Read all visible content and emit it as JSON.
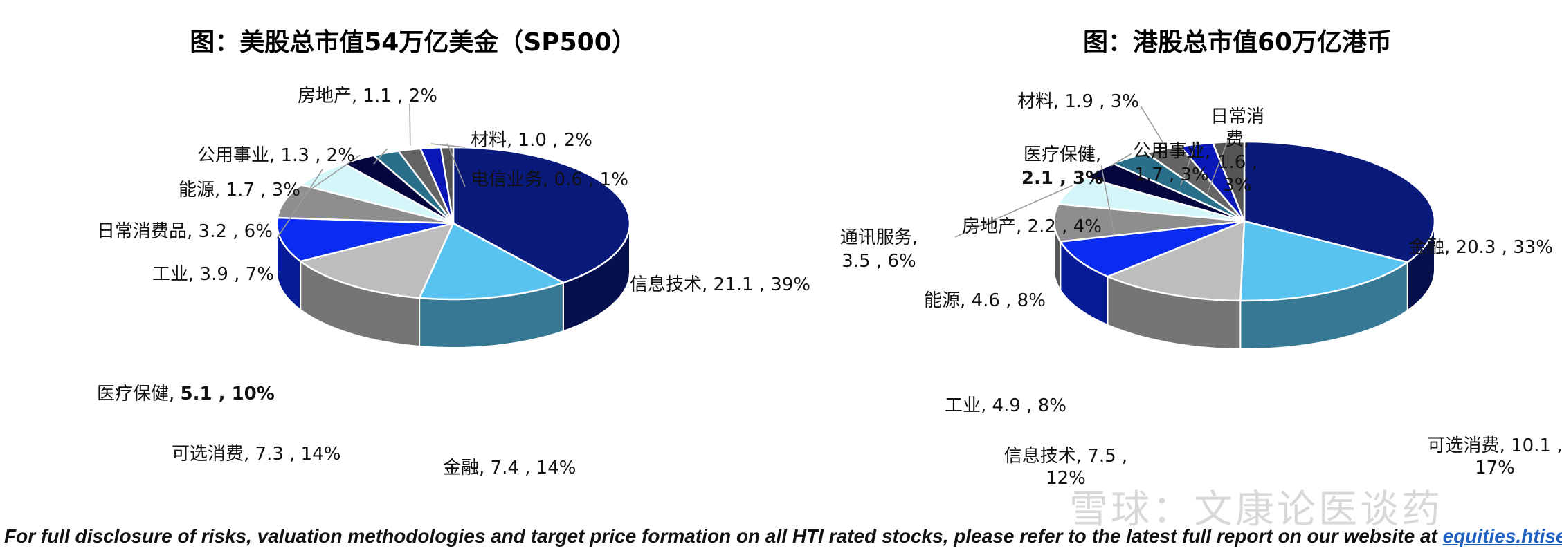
{
  "chart_data": [
    {
      "type": "pie",
      "title": "图：美股总市值54万亿美金（SP500）",
      "slices": [
        {
          "name": "信息技术",
          "value": 21.1,
          "pct": "39%",
          "label": "信息技术, 21.1 , 39%",
          "color": "#0a1a7a"
        },
        {
          "name": "金融",
          "value": 7.4,
          "pct": "14%",
          "label": "金融, 7.4 , 14%",
          "color": "#58c3f0"
        },
        {
          "name": "可选消费",
          "value": 7.3,
          "pct": "14%",
          "label": "可选消费, 7.3 , 14%",
          "color": "#bdbdbd"
        },
        {
          "name": "医疗保健",
          "value": 5.1,
          "pct": "10%",
          "label_prefix": "医疗保健, ",
          "label_bold": "5.1 , 10%",
          "color": "#0a2cf0"
        },
        {
          "name": "工业",
          "value": 3.9,
          "pct": "7%",
          "label": "工业, 3.9 , 7%",
          "color": "#8e8e8e"
        },
        {
          "name": "日常消费品",
          "value": 3.2,
          "pct": "6%",
          "label": "日常消费品, 3.2 , 6%",
          "color": "#d5f6f8"
        },
        {
          "name": "能源",
          "value": 1.7,
          "pct": "3%",
          "label": "能源, 1.7 , 3%",
          "color": "#06063f"
        },
        {
          "name": "公用事业",
          "value": 1.3,
          "pct": "2%",
          "label": "公用事业, 1.3 , 2%",
          "color": "#2a6f8a"
        },
        {
          "name": "房地产",
          "value": 1.1,
          "pct": "2%",
          "label": "房地产, 1.1 , 2%",
          "color": "#646464"
        },
        {
          "name": "材料",
          "value": 1.0,
          "pct": "2%",
          "label": "材料, 1.0 , 2%",
          "color": "#0a18b8"
        },
        {
          "name": "电信业务",
          "value": 0.6,
          "pct": "1%",
          "label": "电信业务, 0.6 , 1%",
          "color": "#555555"
        }
      ]
    },
    {
      "type": "pie",
      "title": "图：港股总市值60万亿港币",
      "slices": [
        {
          "name": "金融",
          "value": 20.3,
          "pct": "33%",
          "label": "金融, 20.3 , 33%",
          "color": "#0a1a7a"
        },
        {
          "name": "可选消费",
          "value": 10.1,
          "pct": "17%",
          "label_lines": [
            "可选消费, 10.1 ,",
            "17%"
          ],
          "color": "#58c3f0"
        },
        {
          "name": "信息技术",
          "value": 7.5,
          "pct": "12%",
          "label_lines": [
            "信息技术, 7.5 ,",
            "12%"
          ],
          "color": "#bdbdbd"
        },
        {
          "name": "工业",
          "value": 4.9,
          "pct": "8%",
          "label": "工业, 4.9 , 8%",
          "color": "#0a2cf0"
        },
        {
          "name": "能源",
          "value": 4.6,
          "pct": "8%",
          "label": "能源, 4.6 , 8%",
          "color": "#8e8e8e"
        },
        {
          "name": "通讯服务",
          "value": 3.5,
          "pct": "6%",
          "label_lines": [
            "通讯服务,",
            "3.5 , 6%"
          ],
          "color": "#d5f6f8"
        },
        {
          "name": "房地产",
          "value": 2.2,
          "pct": "4%",
          "label": "房地产, 2.2 , 4%",
          "color": "#06063f"
        },
        {
          "name": "医疗保健",
          "value": 2.1,
          "pct": "3%",
          "label_lines": [
            "医疗保健,",
            "2.1 , 3%"
          ],
          "bold_line": 1,
          "color": "#2a6f8a"
        },
        {
          "name": "材料",
          "value": 1.9,
          "pct": "3%",
          "label": "材料, 1.9 , 3%",
          "color": "#646464"
        },
        {
          "name": "公用事业",
          "value": 1.7,
          "pct": "3%",
          "label_lines": [
            "公用事业,",
            "1.7 , 3%"
          ],
          "color": "#0a18b8"
        },
        {
          "name": "日常消费",
          "value": 1.6,
          "pct": "3%",
          "label_lines": [
            "日常消",
            "费,",
            "1.6 ,",
            "3%"
          ],
          "color": "#555555"
        }
      ]
    }
  ],
  "footer": {
    "text": "For full disclosure of risks, valuation methodologies and target price formation on all HTI rated stocks, please refer to the latest full report on our website at ",
    "link": "equities.htisec.com"
  },
  "watermark": "雪球：文康论医谈药"
}
